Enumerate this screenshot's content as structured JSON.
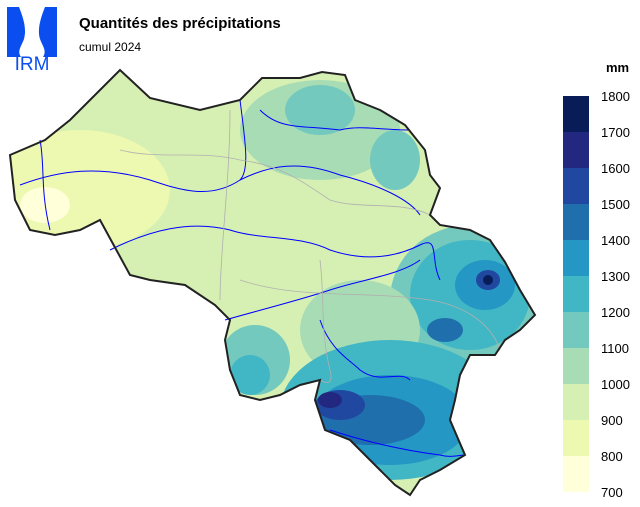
{
  "header": {
    "logo_text": "IRM",
    "title": "Quantités des précipitations",
    "subtitle": "cumul 2024"
  },
  "legend": {
    "unit": "mm",
    "ticks": [
      "1800",
      "1700",
      "1600",
      "1500",
      "1400",
      "1300",
      "1200",
      "1100",
      "1000",
      "900",
      "800",
      "700"
    ],
    "colors": [
      "#081d58",
      "#22287f",
      "#2148a0",
      "#1f6fad",
      "#2497c4",
      "#41b6c4",
      "#73c9bd",
      "#a8dcb5",
      "#d6efb3",
      "#edf8b1",
      "#ffffd9"
    ]
  },
  "map": {
    "region": "Belgium",
    "brand_color": "#0a4ef0",
    "river_color": "#0000ff"
  }
}
